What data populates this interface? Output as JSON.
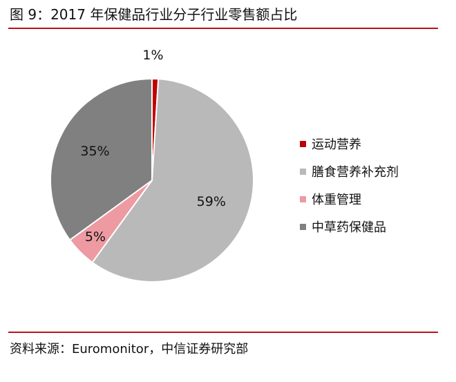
{
  "figure": {
    "title": "图 9：2017 年保健品行业分子行业零售额占比",
    "source": "资料来源：Euromonitor，中信证券研究部"
  },
  "chart_data": {
    "type": "pie",
    "title": "",
    "start_angle_deg": 0,
    "direction": "clockwise",
    "legend_position": "right",
    "slices": [
      {
        "name": "运动营养",
        "value": 1,
        "label": "1%",
        "color": "#c00000"
      },
      {
        "name": "膳食营养补充剂",
        "value": 59,
        "label": "59%",
        "color": "#b9b9b9"
      },
      {
        "name": "体重管理",
        "value": 5,
        "label": "5%",
        "color": "#ed9aa2"
      },
      {
        "name": "中草药保健品",
        "value": 35,
        "label": "35%",
        "color": "#808080"
      }
    ]
  }
}
